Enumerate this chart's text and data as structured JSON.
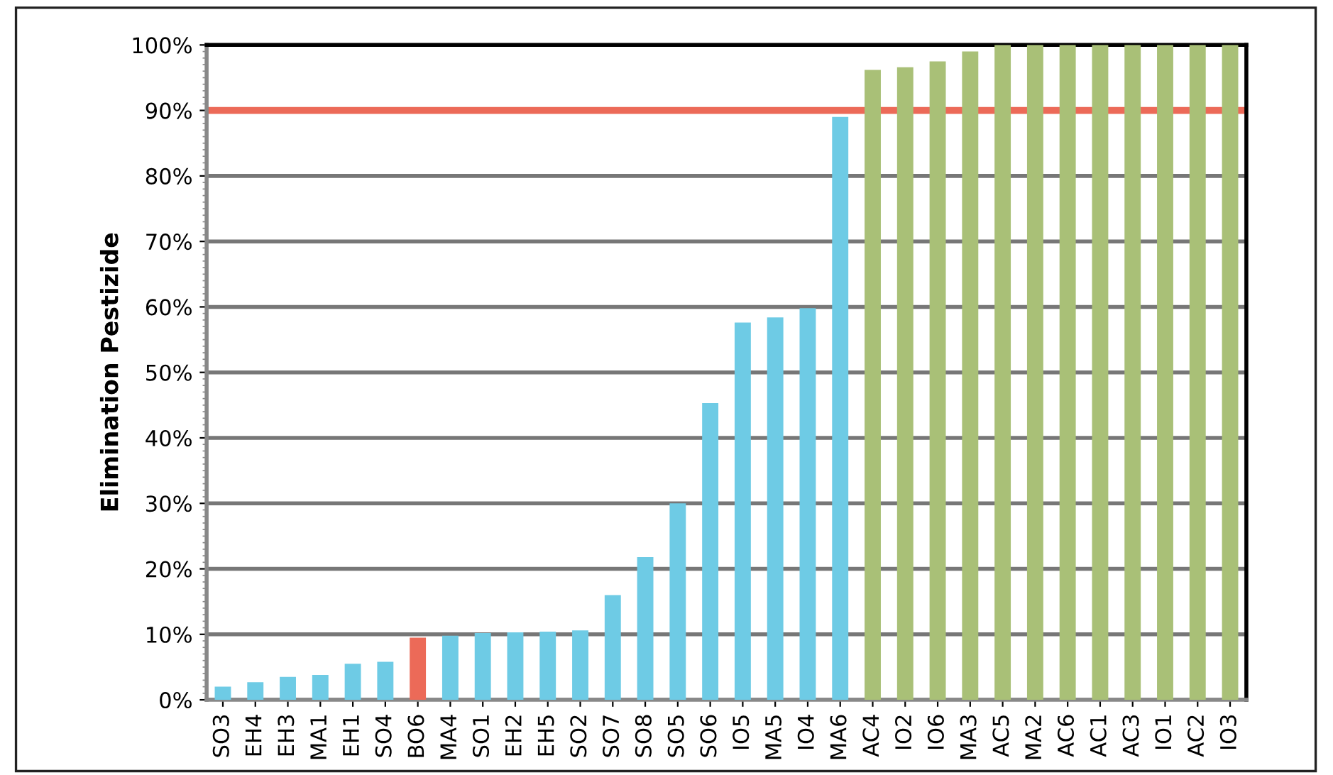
{
  "chart_data": {
    "type": "bar",
    "ylabel": "Elimination Pestizide",
    "categories": [
      "SO3",
      "EH4",
      "EH3",
      "MA1",
      "EH1",
      "SO4",
      "BO6",
      "MA4",
      "SO1",
      "EH2",
      "EH5",
      "SO2",
      "SO7",
      "SO8",
      "SO5",
      "SO6",
      "IO5",
      "MA5",
      "IO4",
      "MA6",
      "AC4",
      "IO2",
      "IO6",
      "MA3",
      "AC5",
      "MA2",
      "AC6",
      "AC1",
      "AC3",
      "IO1",
      "AC2",
      "IO3"
    ],
    "values": [
      2,
      2.7,
      3.5,
      3.8,
      5.5,
      5.8,
      9.5,
      9.8,
      10.2,
      10.3,
      10.4,
      10.6,
      16,
      21.8,
      30,
      45.3,
      57.6,
      58.4,
      59.8,
      89,
      96.2,
      96.6,
      97.5,
      99,
      100,
      100,
      100,
      100,
      100,
      100,
      100,
      100
    ],
    "colors": [
      "#6ecbe5",
      "#6ecbe5",
      "#6ecbe5",
      "#6ecbe5",
      "#6ecbe5",
      "#6ecbe5",
      "#ec6a58",
      "#6ecbe5",
      "#6ecbe5",
      "#6ecbe5",
      "#6ecbe5",
      "#6ecbe5",
      "#6ecbe5",
      "#6ecbe5",
      "#6ecbe5",
      "#6ecbe5",
      "#6ecbe5",
      "#6ecbe5",
      "#6ecbe5",
      "#6ecbe5",
      "#a9c077",
      "#a9c077",
      "#a9c077",
      "#a9c077",
      "#a9c077",
      "#a9c077",
      "#a9c077",
      "#a9c077",
      "#a9c077",
      "#a9c077",
      "#a9c077",
      "#a9c077"
    ],
    "ylim": [
      0,
      100
    ],
    "yticks": [
      {
        "value": 0,
        "label": "0%"
      },
      {
        "value": 10,
        "label": "10%"
      },
      {
        "value": 20,
        "label": "20%"
      },
      {
        "value": 30,
        "label": "30%"
      },
      {
        "value": 40,
        "label": "40%"
      },
      {
        "value": 50,
        "label": "50%"
      },
      {
        "value": 60,
        "label": "60%"
      },
      {
        "value": 70,
        "label": "70%"
      },
      {
        "value": 80,
        "label": "80%"
      },
      {
        "value": 90,
        "label": "90%"
      },
      {
        "value": 100,
        "label": "100%"
      }
    ],
    "grid": "y",
    "legend": false,
    "ref_lines": [
      {
        "axis": "y",
        "value": 90,
        "color": "#ec6a58"
      }
    ]
  }
}
